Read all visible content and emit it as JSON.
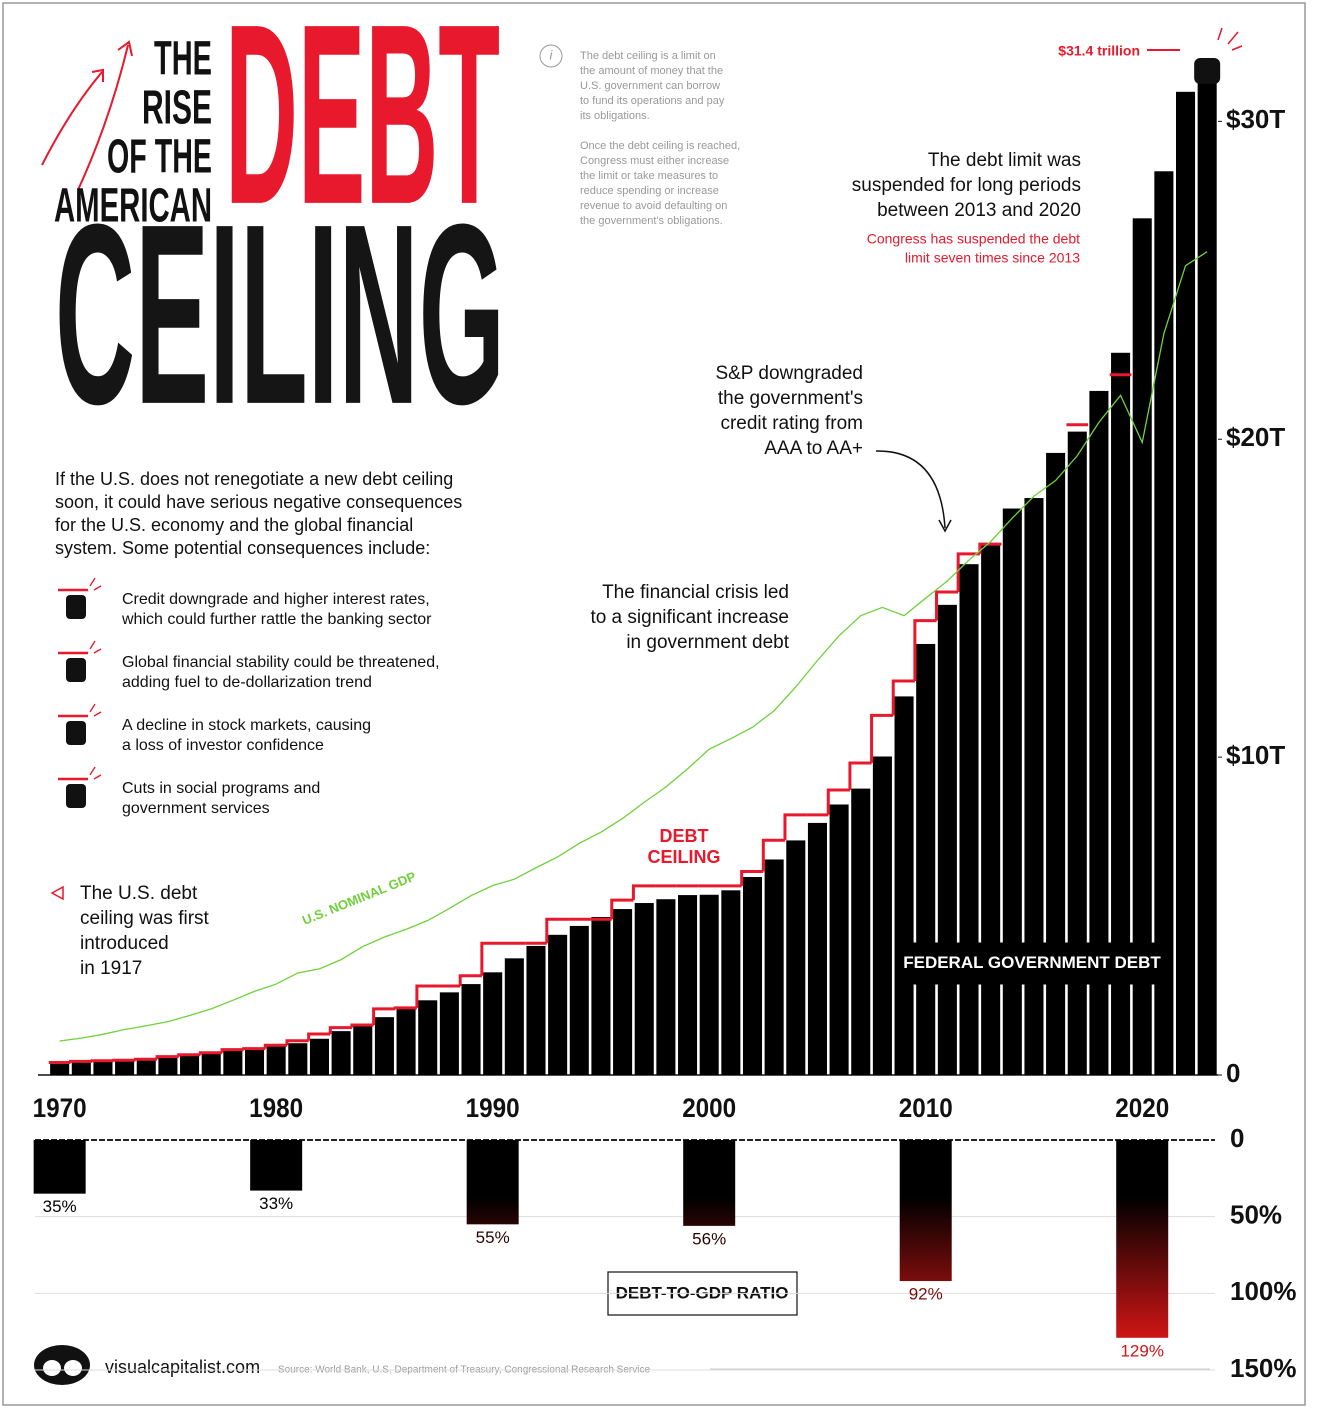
{
  "title": {
    "line1": "THE",
    "line2": "RISE",
    "line3": "OF THE",
    "line4": "AMERICAN",
    "word1": "DEBT",
    "word2": "CEILING"
  },
  "info": {
    "paragraph1": [
      "The debt ceiling is a limit on",
      "the amount of money that the",
      "U.S. government can borrow",
      "to fund its operations and pay",
      "its obligations."
    ],
    "paragraph2": [
      "Once the debt ceiling is reached,",
      "Congress must either increase",
      "the limit or take measures to",
      "reduce spending or increase",
      "revenue to avoid defaulting on",
      "the government's obligations."
    ]
  },
  "intro": [
    "If the U.S. does not renegotiate a new debt ceiling",
    "soon, it could have serious negative consequences",
    "for the U.S. economy and the global financial",
    "system. Some potential consequences include:"
  ],
  "consequences": [
    [
      "Credit downgrade and higher interest rates,",
      "which could further rattle the banking sector"
    ],
    [
      "Global financial stability could be threatened,",
      "adding fuel to de-dollarization trend"
    ],
    [
      "A decline in stock markets, causing",
      "a loss of investor confidence"
    ],
    [
      "Cuts in social programs and",
      "government services"
    ]
  ],
  "annotations": {
    "ceiling_now": "$31.4 trillion",
    "suspended": [
      "The debt limit was",
      "suspended for long periods",
      "between 2013 and 2020"
    ],
    "suspended_note": [
      "Congress has suspended the debt",
      "limit seven times since 2013"
    ],
    "downgrade": [
      "S&P downgraded",
      "the government's",
      "credit rating from",
      "AAA to AA+"
    ],
    "crisis": [
      "The financial crisis led",
      "to a significant increase",
      "in government debt"
    ],
    "first": [
      "The U.S. debt",
      "ceiling was first",
      "introduced",
      "in 1917"
    ]
  },
  "footer": {
    "brand": "visualcapitalist.com",
    "source": "Source: World Bank, U.S. Department of Treasury, Congressional Research Service"
  },
  "chart_data": [
    {
      "type": "bar",
      "x": [
        1970,
        1971,
        1972,
        1973,
        1974,
        1975,
        1976,
        1977,
        1978,
        1979,
        1980,
        1981,
        1982,
        1983,
        1984,
        1985,
        1986,
        1987,
        1988,
        1989,
        1990,
        1991,
        1992,
        1993,
        1994,
        1995,
        1996,
        1997,
        1998,
        1999,
        2000,
        2001,
        2002,
        2003,
        2004,
        2005,
        2006,
        2007,
        2008,
        2009,
        2010,
        2011,
        2012,
        2013,
        2014,
        2015,
        2016,
        2017,
        2018,
        2019,
        2020,
        2021,
        2022,
        2023
      ],
      "xlim": [
        1969,
        2023.5
      ],
      "xticks": [
        1970,
        1980,
        1990,
        2000,
        2010,
        2020
      ],
      "ylim": [
        0,
        33
      ],
      "yticks": [
        0,
        {
          "value": 10,
          "label": "$10T"
        },
        {
          "value": 20,
          "label": "$20T"
        },
        {
          "value": 30,
          "label": "$30T"
        }
      ],
      "grid": false,
      "series": [
        {
          "name": "FEDERAL GOVERNMENT DEBT",
          "type": "bar",
          "color": "#000000",
          "values": [
            0.37,
            0.4,
            0.43,
            0.46,
            0.48,
            0.54,
            0.63,
            0.71,
            0.78,
            0.83,
            0.91,
            1.0,
            1.14,
            1.38,
            1.57,
            1.82,
            2.13,
            2.35,
            2.6,
            2.86,
            3.23,
            3.67,
            4.06,
            4.41,
            4.69,
            4.97,
            5.22,
            5.41,
            5.53,
            5.66,
            5.67,
            5.81,
            6.23,
            6.78,
            7.38,
            7.93,
            8.51,
            9.01,
            10.02,
            11.91,
            13.56,
            14.79,
            16.07,
            16.74,
            17.82,
            18.15,
            19.57,
            20.24,
            21.52,
            22.72,
            26.95,
            28.43,
            30.93,
            31.2
          ]
        },
        {
          "name": "DEBT CEILING",
          "type": "step",
          "color": "#e8192c",
          "values": [
            0.395,
            0.43,
            0.45,
            0.465,
            0.495,
            0.577,
            0.636,
            0.7,
            0.798,
            0.83,
            0.935,
            1.079,
            1.29,
            1.49,
            1.573,
            2.079,
            2.111,
            2.8,
            2.8,
            3.123,
            4.145,
            4.145,
            4.145,
            4.9,
            4.9,
            4.9,
            5.5,
            5.95,
            5.95,
            5.95,
            5.95,
            5.95,
            6.4,
            7.384,
            8.184,
            8.184,
            8.965,
            9.815,
            11.315,
            12.394,
            14.294,
            15.194,
            16.394,
            16.699,
            null,
            null,
            null,
            20.456,
            null,
            22.03,
            null,
            null,
            null,
            31.4
          ]
        },
        {
          "name": "U.S. NOMINAL GDP",
          "type": "line",
          "color": "#6fd13b",
          "values": [
            1.07,
            1.16,
            1.28,
            1.43,
            1.55,
            1.68,
            1.87,
            2.08,
            2.35,
            2.63,
            2.86,
            3.21,
            3.34,
            3.63,
            4.04,
            4.34,
            4.58,
            4.86,
            5.24,
            5.64,
            5.96,
            6.16,
            6.52,
            6.86,
            7.29,
            7.64,
            8.07,
            8.58,
            9.06,
            9.63,
            10.25,
            10.58,
            10.94,
            11.46,
            12.21,
            13.04,
            13.82,
            14.45,
            14.71,
            14.45,
            15.0,
            15.54,
            16.2,
            16.78,
            17.52,
            18.21,
            18.7,
            19.48,
            20.53,
            21.38,
            19.9,
            23.32,
            25.46,
            25.9
          ]
        }
      ]
    },
    {
      "type": "bar",
      "title": "DEBT-TO-GDP RATIO",
      "x": [
        1970,
        1980,
        1990,
        2000,
        2010,
        2020
      ],
      "values": [
        35,
        33,
        55,
        56,
        92,
        129
      ],
      "value_labels": [
        "35%",
        "33%",
        "55%",
        "56%",
        "92%",
        "129%"
      ],
      "ylim": [
        0,
        150
      ],
      "yticks": [
        0,
        {
          "value": 50,
          "label": "50%"
        },
        {
          "value": 100,
          "label": "100%"
        },
        {
          "value": 150,
          "label": "150%"
        }
      ],
      "grid": true,
      "gradient": [
        "#000000",
        "#ff1a1a"
      ]
    }
  ]
}
